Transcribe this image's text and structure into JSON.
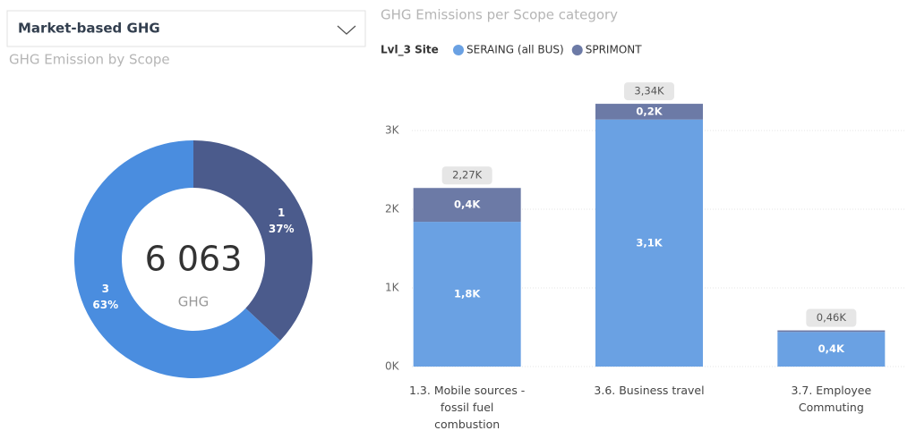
{
  "slicer": {
    "selected": "Market-based GHG"
  },
  "chart_data": [
    {
      "type": "donut",
      "title": "GHG Emission by Scope",
      "center_value": "6 063",
      "center_label": "GHG",
      "categories": [
        "1",
        "3"
      ],
      "values": [
        37,
        63
      ],
      "value_labels": [
        "37%",
        "63%"
      ],
      "colors": [
        "#4b5b8c",
        "#4a8ddf"
      ]
    },
    {
      "type": "stacked_bar",
      "title": "GHG Emissions per Scope category",
      "legend_title": "Lvl_3 Site",
      "categories": [
        "1.3. Mobile sources - fossil fuel combustion",
        "3.6. Business travel",
        "3.7. Employee Commuting"
      ],
      "series": [
        {
          "name": "SERAING (all BUS)",
          "color": "#6aa1e3",
          "values": [
            1840,
            3140,
            440
          ],
          "value_labels": [
            "1,8K",
            "3,1K",
            "0,4K"
          ]
        },
        {
          "name": "SPRIMONT",
          "color": "#6c7aa6",
          "values": [
            430,
            200,
            20
          ],
          "value_labels": [
            "0,4K",
            "0,2K",
            null
          ]
        }
      ],
      "totals": [
        2270,
        3340,
        460
      ],
      "total_labels": [
        "2,27K",
        "3,34K",
        "0,46K"
      ],
      "ylim": [
        0,
        3700
      ],
      "yticks": [
        {
          "value": 0,
          "label": "0K"
        },
        {
          "value": 1000,
          "label": "1K"
        },
        {
          "value": 2000,
          "label": "2K"
        },
        {
          "value": 3000,
          "label": "3K"
        }
      ],
      "grid": true
    }
  ]
}
